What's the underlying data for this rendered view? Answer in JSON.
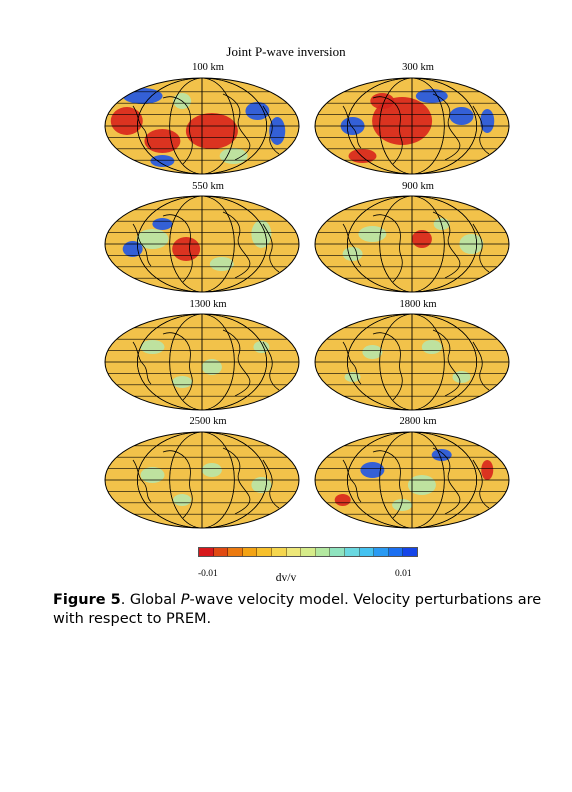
{
  "figure": {
    "title": "Joint P-wave inversion",
    "maps": [
      {
        "depth": "100 km"
      },
      {
        "depth": "300 km"
      },
      {
        "depth": "550 km"
      },
      {
        "depth": "900 km"
      },
      {
        "depth": "1300 km"
      },
      {
        "depth": "1800 km"
      },
      {
        "depth": "2500 km"
      },
      {
        "depth": "2800 km"
      }
    ],
    "colorbar": {
      "min_label": "-0.01",
      "max_label": "0.01",
      "label": "dv/v",
      "colors": [
        "#d7191c",
        "#e04a12",
        "#eb7a10",
        "#f3a314",
        "#f7c02c",
        "#f5d64e",
        "#eee87a",
        "#d6ec8a",
        "#b3e8a0",
        "#8fe3bf",
        "#6ad8e0",
        "#45c2f0",
        "#2a9af2",
        "#1c6ff0",
        "#1545e8"
      ]
    },
    "palette": {
      "ocean_background": "#f2c24a",
      "slow": "#d8231c",
      "fast": "#1f55e6",
      "neutral": "#b8e6a8"
    }
  },
  "caption": {
    "label": "Figure 5",
    "text_1": ".  Global ",
    "italic": "P",
    "text_2": "-wave velocity model.  Velocity perturbations are with respect to PREM."
  }
}
